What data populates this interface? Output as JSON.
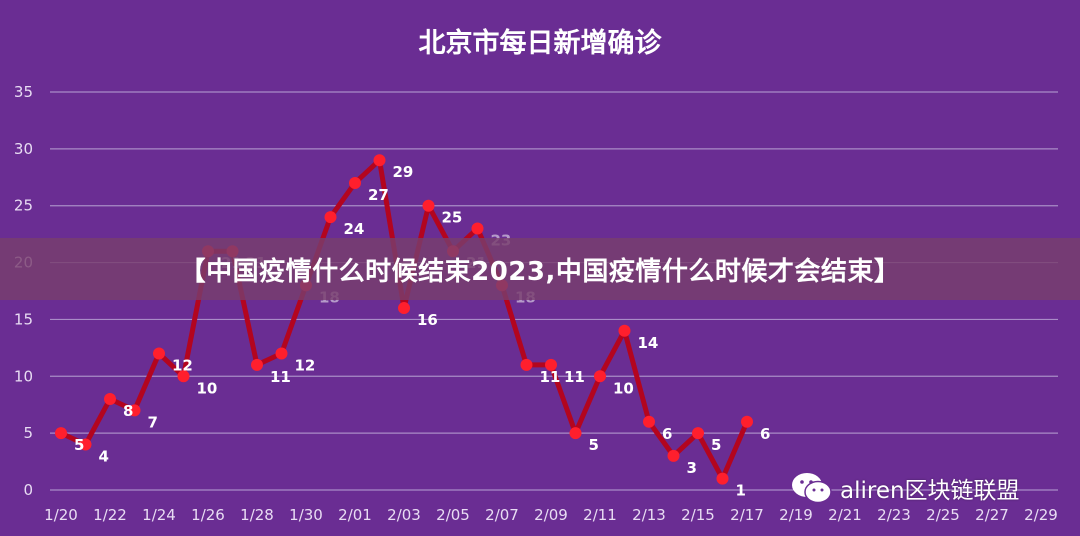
{
  "colors": {
    "background": "#6a2d93",
    "line": "#b3051f",
    "marker": "#ff1f2d",
    "grid": "#a98cc7"
  },
  "banner_text": "【中国疫情什么时候结束2023,中国疫情什么时候才会结束】",
  "watermark": {
    "icon": "wechat-icon",
    "text": "aliren区块链联盟"
  },
  "chart_data": {
    "type": "line",
    "title": "北京市每日新增确诊",
    "xlabel": "",
    "ylabel": "",
    "ylim": [
      0,
      35
    ],
    "yticks": [
      0,
      5,
      10,
      15,
      20,
      25,
      30,
      35
    ],
    "grid": true,
    "x_ticks": [
      "1/20",
      "1/22",
      "1/24",
      "1/26",
      "1/28",
      "1/30",
      "2/01",
      "2/03",
      "2/05",
      "2/07",
      "2/09",
      "2/11",
      "2/13",
      "2/15",
      "2/17",
      "2/19",
      "2/21",
      "2/23",
      "2/25",
      "2/27",
      "2/29"
    ],
    "x": [
      "1/20",
      "1/21",
      "1/22",
      "1/23",
      "1/24",
      "1/25",
      "1/26",
      "1/27",
      "1/28",
      "1/29",
      "1/30",
      "1/31",
      "2/01",
      "2/02",
      "2/03",
      "2/04",
      "2/05",
      "2/06",
      "2/07",
      "2/08",
      "2/09",
      "2/10",
      "2/11",
      "2/12",
      "2/13",
      "2/14",
      "2/15",
      "2/16",
      "2/17"
    ],
    "series": [
      {
        "values": [
          5,
          4,
          8,
          7,
          12,
          10,
          21,
          21,
          11,
          12,
          18,
          24,
          27,
          29,
          16,
          25,
          21,
          23,
          18,
          11,
          11,
          5,
          10,
          14,
          6,
          3,
          5,
          1,
          6
        ]
      }
    ],
    "data_labels": [
      "5",
      "4",
      "8",
      "7",
      "12",
      "10",
      "21",
      "21",
      "11",
      "12",
      "18",
      "24",
      "27",
      "29",
      "16",
      "25",
      "21",
      "23",
      "18",
      "11",
      "11",
      "5",
      "10",
      "14",
      "6",
      "3",
      "5",
      "1",
      "6"
    ]
  }
}
